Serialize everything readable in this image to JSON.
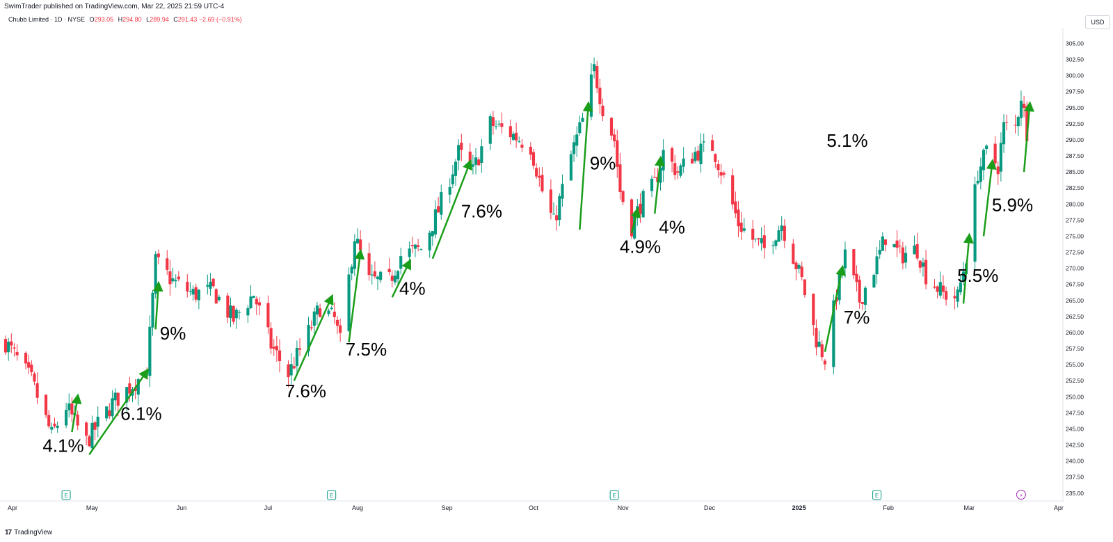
{
  "header": {
    "published": "SwimTrader published on TradingView.com, Mar 22, 2025 21:59 UTC-4",
    "symbol": "Chubb Limited · 1D · NYSE",
    "o_label": "O",
    "o_value": "293.05",
    "h_label": "H",
    "h_value": "294.80",
    "l_label": "L",
    "l_value": "289.94",
    "c_label": "C",
    "c_value": "291.43 −2.69 (−0.91%)"
  },
  "currency_button": "USD",
  "footer": {
    "brand": "TradingView",
    "logo_glyph": "17"
  },
  "colors": {
    "up": "#089981",
    "down": "#f23645",
    "annotation": "#1a9e1a",
    "earnings": "#089981",
    "flash": "#9c27b0"
  },
  "chart_data": {
    "type": "candlestick",
    "ylim": [
      234,
      307
    ],
    "y_ticks": [
      "235.00",
      "237.50",
      "240.00",
      "242.50",
      "245.00",
      "247.50",
      "250.00",
      "252.50",
      "255.00",
      "257.50",
      "260.00",
      "262.50",
      "265.00",
      "267.50",
      "270.00",
      "272.50",
      "275.00",
      "277.50",
      "280.00",
      "282.50",
      "285.00",
      "287.50",
      "290.00",
      "292.50",
      "295.00",
      "297.50",
      "300.00",
      "302.50",
      "305.00"
    ],
    "x_axis_start": "Apr 1, 2024",
    "x_ticks": [
      {
        "date": "Apr 1",
        "label": "Apr"
      },
      {
        "date": "May 1",
        "label": "May"
      },
      {
        "date": "Jun 1",
        "label": "Jun"
      },
      {
        "date": "Jul 1",
        "label": "Jul"
      },
      {
        "date": "Aug 1",
        "label": "Aug"
      },
      {
        "date": "Sep 1",
        "label": "Sep"
      },
      {
        "date": "Oct 1",
        "label": "Oct"
      },
      {
        "date": "Nov 1",
        "label": "Nov"
      },
      {
        "date": "Dec 1",
        "label": "Dec"
      },
      {
        "date": "Jan 1",
        "label": "2025",
        "bold": true
      },
      {
        "date": "Feb 1",
        "label": "Feb"
      },
      {
        "date": "Mar 1",
        "label": "Mar"
      },
      {
        "date": "Apr 1",
        "label": "Apr"
      }
    ],
    "earnings_markers": [
      "Apr 22",
      "Jul 23",
      "Oct 29",
      "Jan 28"
    ],
    "earnings_glyph": "E",
    "flash_marker": "Mar 19",
    "flash_glyph": "⚡",
    "anchors": [
      {
        "date": "Apr 1",
        "close": 258.5
      },
      {
        "date": "Apr 10",
        "close": 252.5
      },
      {
        "date": "Apr 17",
        "close": 244.0
      },
      {
        "date": "Apr 22",
        "close": 248.5
      },
      {
        "date": "Apr 25",
        "close": 246.0
      },
      {
        "date": "Apr 29",
        "close": 243.0
      },
      {
        "date": "May 2",
        "close": 245.0
      },
      {
        "date": "May 8",
        "close": 249.0
      },
      {
        "date": "May 14",
        "close": 251.5
      },
      {
        "date": "May 20",
        "close": 254.0
      },
      {
        "date": "May 23",
        "close": 271.0
      },
      {
        "date": "May 29",
        "close": 268.0
      },
      {
        "date": "Jun 5",
        "close": 266.0
      },
      {
        "date": "Jun 12",
        "close": 266.5
      },
      {
        "date": "Jun 19",
        "close": 262.0
      },
      {
        "date": "Jun 26",
        "close": 266.0
      },
      {
        "date": "Jul 2",
        "close": 258.0
      },
      {
        "date": "Jul 8",
        "close": 253.5
      },
      {
        "date": "Jul 15",
        "close": 260.0
      },
      {
        "date": "Jul 19",
        "close": 264.0
      },
      {
        "date": "Jul 24",
        "close": 262.0
      },
      {
        "date": "Jul 26",
        "close": 258.5
      },
      {
        "date": "Jul 31",
        "close": 275.0
      },
      {
        "date": "Aug 5",
        "close": 268.0
      },
      {
        "date": "Aug 12",
        "close": 268.0
      },
      {
        "date": "Aug 16",
        "close": 272.0
      },
      {
        "date": "Aug 23",
        "close": 273.0
      },
      {
        "date": "Aug 29",
        "close": 279.0
      },
      {
        "date": "Sep 5",
        "close": 288.0
      },
      {
        "date": "Sep 10",
        "close": 285.0
      },
      {
        "date": "Sep 16",
        "close": 292.5
      },
      {
        "date": "Sep 23",
        "close": 291.0
      },
      {
        "date": "Sep 30",
        "close": 289.0
      },
      {
        "date": "Oct 4",
        "close": 282.0
      },
      {
        "date": "Oct 8",
        "close": 277.0
      },
      {
        "date": "Oct 14",
        "close": 287.5
      },
      {
        "date": "Oct 18",
        "close": 293.0
      },
      {
        "date": "Oct 22",
        "close": 301.0
      },
      {
        "date": "Oct 25",
        "close": 295.0
      },
      {
        "date": "Oct 29",
        "close": 290.0
      },
      {
        "date": "Oct 31",
        "close": 282.0
      },
      {
        "date": "Nov 4",
        "close": 276.5
      },
      {
        "date": "Nov 7",
        "close": 280.0
      },
      {
        "date": "Nov 12",
        "close": 283.0
      },
      {
        "date": "Nov 15",
        "close": 288.0
      },
      {
        "date": "Nov 20",
        "close": 285.0
      },
      {
        "date": "Nov 26",
        "close": 288.0
      },
      {
        "date": "Dec 2",
        "close": 289.0
      },
      {
        "date": "Dec 6",
        "close": 284.0
      },
      {
        "date": "Dec 11",
        "close": 277.0
      },
      {
        "date": "Dec 17",
        "close": 274.0
      },
      {
        "date": "Dec 20",
        "close": 273.0
      },
      {
        "date": "Dec 26",
        "close": 277.0
      },
      {
        "date": "Jan 2",
        "close": 268.0
      },
      {
        "date": "Jan 7",
        "close": 259.0
      },
      {
        "date": "Jan 10",
        "close": 256.0
      },
      {
        "date": "Jan 14",
        "close": 266.0
      },
      {
        "date": "Jan 17",
        "close": 272.0
      },
      {
        "date": "Jan 22",
        "close": 265.0
      },
      {
        "date": "Jan 28",
        "close": 271.0
      },
      {
        "date": "Jan 31",
        "close": 275.0
      },
      {
        "date": "Feb 5",
        "close": 272.0
      },
      {
        "date": "Feb 11",
        "close": 273.0
      },
      {
        "date": "Feb 14",
        "close": 269.0
      },
      {
        "date": "Feb 20",
        "close": 266.0
      },
      {
        "date": "Feb 25",
        "close": 265.5
      },
      {
        "date": "Feb 28",
        "close": 272.0
      },
      {
        "date": "Mar 4",
        "close": 285.0
      },
      {
        "date": "Mar 7",
        "close": 288.0
      },
      {
        "date": "Mar 11",
        "close": 286.0
      },
      {
        "date": "Mar 13",
        "close": 292.0
      },
      {
        "date": "Mar 17",
        "close": 292.0
      },
      {
        "date": "Mar 19",
        "close": 297.0
      },
      {
        "date": "Mar 21",
        "close": 291.4
      }
    ],
    "annotations": [
      {
        "label": "4.1%",
        "from": [
          "Apr 24",
          244.5
        ],
        "to": [
          "Apr 26",
          250.0
        ],
        "text_at": [
          "Apr 21",
          242.5
        ]
      },
      {
        "label": "6.1%",
        "from": [
          "Apr 30",
          241.0
        ],
        "to": [
          "May 20",
          254.0
        ],
        "text_at": [
          "May 18",
          247.5
        ]
      },
      {
        "label": "9%",
        "from": [
          "May 23",
          260.5
        ],
        "to": [
          "May 24",
          267.5
        ],
        "text_at": [
          "May 29",
          260.0
        ]
      },
      {
        "label": "7.6%",
        "from": [
          "Jul 10",
          252.5
        ],
        "to": [
          "Jul 23",
          265.5
        ],
        "text_at": [
          "Jul 14",
          251.0
        ]
      },
      {
        "label": "7.5%",
        "from": [
          "Jul 29",
          258.5
        ],
        "to": [
          "Aug 2",
          272.5
        ],
        "text_at": [
          "Aug 4",
          257.5
        ]
      },
      {
        "label": "4%",
        "from": [
          "Aug 13",
          265.5
        ],
        "to": [
          "Aug 19",
          271.0
        ],
        "text_at": [
          "Aug 20",
          267.0
        ]
      },
      {
        "label": "7.6%",
        "from": [
          "Aug 27",
          271.5
        ],
        "to": [
          "Sep 9",
          286.5
        ],
        "text_at": [
          "Sep 13",
          279.0
        ]
      },
      {
        "label": "9%",
        "from": [
          "Oct 17",
          276.0
        ],
        "to": [
          "Oct 20",
          295.5
        ],
        "text_at": [
          "Oct 25",
          286.5
        ]
      },
      {
        "label": "4.9%",
        "from": [
          "Nov 4",
          275.5
        ],
        "to": [
          "Nov 6",
          279.0
        ],
        "text_at": [
          "Nov 7",
          273.5
        ]
      },
      {
        "label": "4%",
        "from": [
          "Nov 12",
          278.5
        ],
        "to": [
          "Nov 14",
          287.0
        ],
        "text_at": [
          "Nov 18",
          276.5
        ]
      },
      {
        "label": "7%",
        "from": [
          "Jan 10",
          257.0
        ],
        "to": [
          "Jan 16",
          270.0
        ],
        "text_at": [
          "Jan 21",
          262.5
        ]
      },
      {
        "label": "5.5%",
        "from": [
          "Feb 27",
          264.5
        ],
        "to": [
          "Mar 1",
          275.0
        ],
        "text_at": [
          "Mar 4",
          269.0
        ]
      },
      {
        "label": "5.9%",
        "from": [
          "Mar 6",
          275.0
        ],
        "to": [
          "Mar 9",
          286.5
        ],
        "text_at": [
          "Mar 16",
          280.0
        ]
      },
      {
        "label": "5.1%",
        "from": [
          "Mar 20",
          285.0
        ],
        "to": [
          "Mar 22",
          295.5
        ],
        "text_at": [
          "Apr 1",
          290.0
        ]
      }
    ]
  }
}
